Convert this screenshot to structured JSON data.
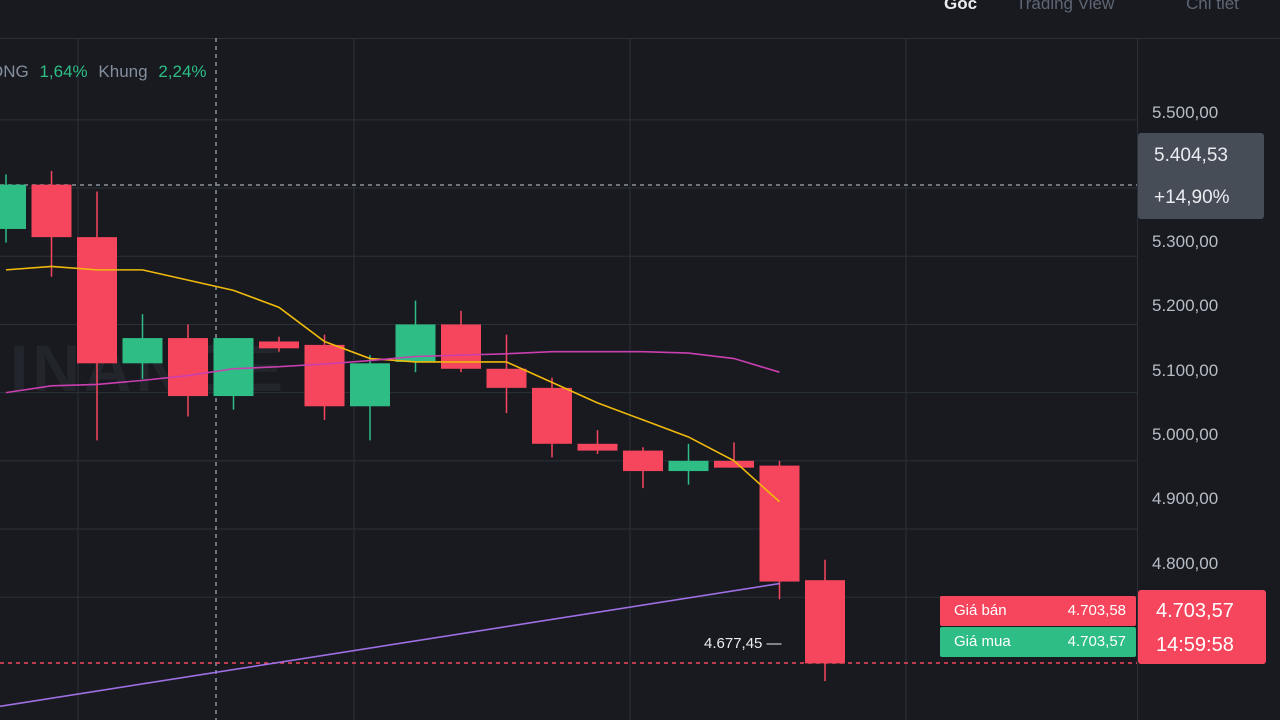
{
  "tabs": [
    {
      "label": "Gốc",
      "active": true
    },
    {
      "label": "Trading View",
      "active": false
    },
    {
      "label": "Chi tiết",
      "active": false
    }
  ],
  "stats": [
    {
      "label": "ONG",
      "value": "1,64%"
    },
    {
      "label": "Khung",
      "value": "2,24%"
    }
  ],
  "watermark": "INANCE",
  "crosshair": {
    "price": "5.404,53",
    "change": "+14,90%"
  },
  "order_book": {
    "sell_label": "Giá bán",
    "sell_value": "4.703,58",
    "buy_label": "Giá mua",
    "buy_value": "4.703,57"
  },
  "last_price": {
    "price": "4.703,57",
    "countdown": "14:59:58"
  },
  "min_label": "4.677,45",
  "colors": {
    "up": "#2ebd85",
    "down": "#f6465d",
    "ma_short": "#f0b90b",
    "ma_mid": "#c93fb0",
    "ma_long": "#9d6fe3",
    "background": "#181a20"
  },
  "chart_data": {
    "type": "candlestick",
    "y_ticks": [
      "5.500,00",
      "5.300,00",
      "5.200,00",
      "5.100,00",
      "5.000,00",
      "4.900,00",
      "4.800,00"
    ],
    "y_tick_values": [
      5500,
      5300,
      5200,
      5100,
      5000,
      4900,
      4800
    ],
    "ylim": [
      4620,
      5620
    ],
    "grid": true,
    "candles": [
      {
        "o": 5340,
        "h": 5420,
        "l": 5320,
        "c": 5405
      },
      {
        "o": 5405,
        "h": 5425,
        "l": 5270,
        "c": 5328
      },
      {
        "o": 5328,
        "h": 5395,
        "l": 5030,
        "c": 5143
      },
      {
        "o": 5143,
        "h": 5215,
        "l": 5120,
        "c": 5180
      },
      {
        "o": 5180,
        "h": 5200,
        "l": 5065,
        "c": 5095
      },
      {
        "o": 5095,
        "h": 5180,
        "l": 5075,
        "c": 5180
      },
      {
        "o": 5175,
        "h": 5182,
        "l": 5160,
        "c": 5165
      },
      {
        "o": 5170,
        "h": 5185,
        "l": 5060,
        "c": 5080
      },
      {
        "o": 5080,
        "h": 5155,
        "l": 5030,
        "c": 5143
      },
      {
        "o": 5145,
        "h": 5235,
        "l": 5130,
        "c": 5200
      },
      {
        "o": 5200,
        "h": 5220,
        "l": 5130,
        "c": 5135
      },
      {
        "o": 5135,
        "h": 5185,
        "l": 5070,
        "c": 5107
      },
      {
        "o": 5107,
        "h": 5122,
        "l": 5005,
        "c": 5025
      },
      {
        "o": 5025,
        "h": 5045,
        "l": 5010,
        "c": 5015
      },
      {
        "o": 5015,
        "h": 5020,
        "l": 4960,
        "c": 4985
      },
      {
        "o": 4985,
        "h": 5025,
        "l": 4965,
        "c": 5000
      },
      {
        "o": 5000,
        "h": 5027,
        "l": 4990,
        "c": 4990
      },
      {
        "o": 4993,
        "h": 5000,
        "l": 4797,
        "c": 4823
      },
      {
        "o": 4825,
        "h": 4855,
        "l": 4677,
        "c": 4703
      }
    ],
    "ma_short": [
      5280,
      5285,
      5280,
      5280,
      5265,
      5250,
      5225,
      5175,
      5150,
      5145,
      5145,
      5145,
      5115,
      5085,
      5060,
      5035,
      5000,
      4940
    ],
    "ma_mid": [
      5100,
      5110,
      5112,
      5118,
      5125,
      5135,
      5138,
      5142,
      5147,
      5153,
      5155,
      5157,
      5160,
      5160,
      5160,
      5158,
      5150,
      5130
    ],
    "ma_long": [
      4640,
      4820
    ]
  }
}
